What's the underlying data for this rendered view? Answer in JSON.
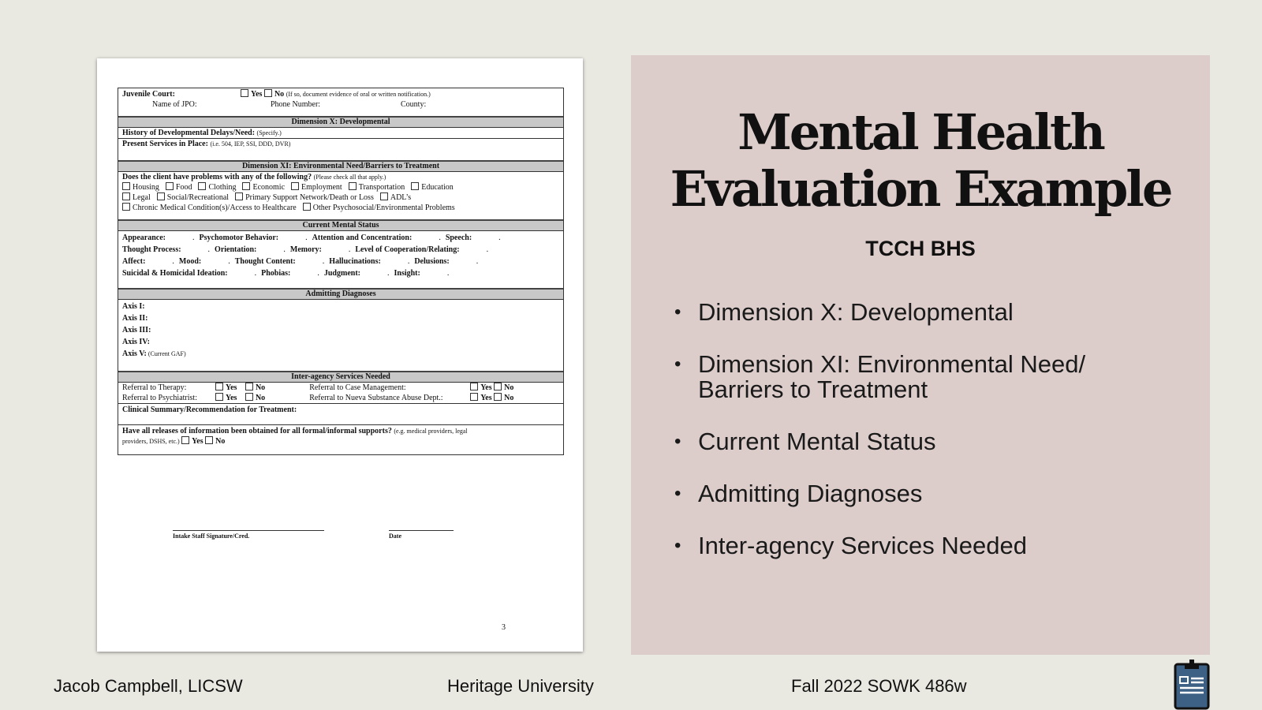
{
  "document": {
    "juvenile": {
      "label": "Juvenile Court:",
      "yes": "Yes",
      "no": "No",
      "note": "(If so, document evidence of oral or written notification.)",
      "jpo": "Name of JPO:",
      "phone": "Phone Number:",
      "county": "County:"
    },
    "dim10": {
      "header": "Dimension X: Developmental",
      "history": "History of Developmental Delays/Need:",
      "history_note": "(Specify.)",
      "services": "Present Services in Place:",
      "services_note": "(i.e. 504, IEP, SSI, DDD, DVR)"
    },
    "dim11": {
      "header": "Dimension XI: Environmental Need/Barriers to Treatment",
      "question": "Does the client have problems with any of the following?",
      "question_note": "(Please check all that apply.)",
      "row1": [
        "Housing",
        "Food",
        "Clothing",
        "Economic",
        "Employment",
        "Transportation",
        "Education"
      ],
      "row2": [
        "Legal",
        "Social/Recreational",
        "Primary Support Network/Death or Loss",
        "ADL’s"
      ],
      "row3": [
        "Chronic Medical Condition(s)/Access to Healthcare",
        "Other Psychosocial/Environmental Problems"
      ]
    },
    "mental": {
      "header": "Current Mental Status",
      "rows": [
        [
          "Appearance:",
          "Psychomotor Behavior:",
          "Attention and Concentration:",
          "Speech:"
        ],
        [
          "Thought Process:",
          "Orientation:",
          "Memory:",
          "Level of Cooperation/Relating:"
        ],
        [
          "Affect:",
          "Mood:",
          "Thought Content:",
          "Hallucinations:",
          "Delusions:"
        ],
        [
          "Suicidal & Homicidal Ideation:",
          "Phobias:",
          "Judgment:",
          "Insight:"
        ]
      ]
    },
    "diagnoses": {
      "header": "Admitting Diagnoses",
      "axes": [
        "Axis I:",
        "Axis II:",
        "Axis III:",
        "Axis IV:",
        "Axis V:"
      ],
      "axis5_note": "(Current GAF)"
    },
    "interagency": {
      "header": "Inter-agency Services Needed",
      "therapy": "Referral to Therapy:",
      "psychiatrist": "Referral to Psychiatrist:",
      "case": "Referral to Case Management:",
      "nueva": "Referral to Nueva Substance Abuse Dept.:",
      "yes": "Yes",
      "no": "No"
    },
    "summary": "Clinical Summary/Recommendation for Treatment:",
    "releases": {
      "question": "Have all releases of information been obtained for all formal/informal supports?",
      "note1": "(e.g. medical providers, legal",
      "note2": "providers, DSHS, etc.)",
      "yes": "Yes",
      "no": "No"
    },
    "signature": "Intake Staff Signature/Cred.",
    "date": "Date",
    "page_number": "3"
  },
  "slide": {
    "title_line1": "Mental Health",
    "title_line2": "Evaluation Example",
    "subtitle": "TCCH BHS",
    "bullets": [
      "Dimension X: Developmental",
      "Dimension XI: Environmental Need/ Barriers to Treatment",
      "Current Mental Status",
      "Admitting Diagnoses",
      "Inter-agency Services Needed"
    ]
  },
  "footer": {
    "author": "Jacob Campbell, LICSW",
    "institution": "Heritage University",
    "course": "Fall 2022 SOWK 486w",
    "icon": "clipboard-icon"
  },
  "colors": {
    "background": "#e9e8e1",
    "panel": "#dccdcb",
    "section_header": "#c8c8c8",
    "clipboard": "#3d6184"
  }
}
